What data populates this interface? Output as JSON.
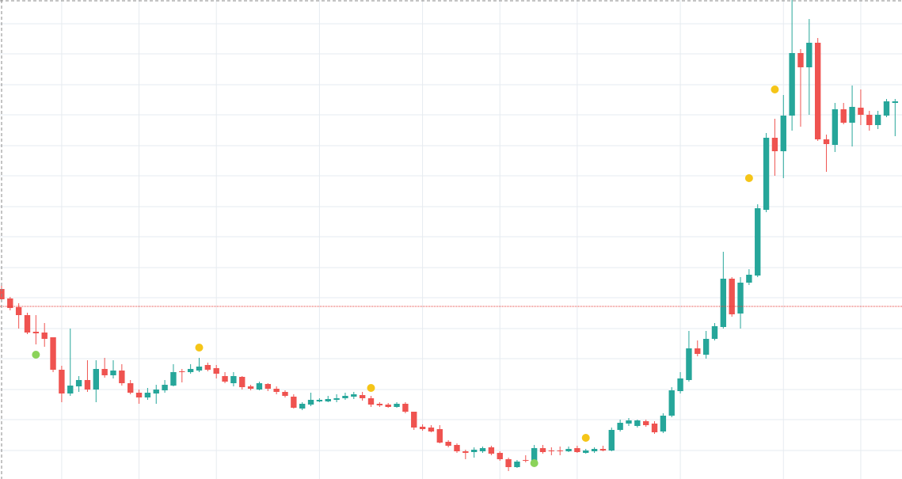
{
  "chart_data": {
    "type": "candlestick",
    "x": [
      0,
      1,
      2,
      3,
      4,
      5,
      6,
      7,
      8,
      9,
      10,
      11,
      12,
      13,
      14,
      15,
      16,
      17,
      18,
      19,
      20,
      21,
      22,
      23,
      24,
      25,
      26,
      27,
      28,
      29,
      30,
      31,
      32,
      33,
      34,
      35,
      36,
      37,
      38,
      39,
      40,
      41,
      42,
      43,
      44,
      45,
      46,
      47,
      48,
      49,
      50,
      51,
      52,
      53,
      54,
      55,
      56,
      57,
      58,
      59,
      60,
      61,
      62,
      63,
      64,
      65,
      66,
      67,
      68,
      69,
      70,
      71,
      72,
      73,
      74,
      75,
      76,
      77,
      78,
      79,
      80,
      81,
      82,
      83,
      84,
      85,
      86,
      87,
      88,
      89,
      90,
      91,
      92,
      93,
      94,
      95,
      96,
      97,
      98,
      99,
      100,
      101,
      102,
      103,
      104
    ],
    "open": [
      240,
      228,
      217,
      207,
      186,
      185,
      179,
      138,
      108,
      117,
      125,
      113,
      139,
      131,
      137,
      121,
      109,
      103,
      108,
      112,
      118,
      136,
      135,
      137,
      144,
      140,
      130,
      121,
      129,
      117,
      113,
      120,
      114,
      110,
      104,
      89,
      94,
      98,
      98,
      100,
      102,
      104,
      106,
      102,
      95,
      94,
      91,
      95,
      85,
      66,
      65,
      63,
      47,
      43,
      35,
      34,
      35,
      40,
      33,
      25,
      15,
      24,
      23,
      39,
      36,
      36,
      35,
      39,
      33,
      35,
      38,
      36,
      62,
      70,
      67,
      73,
      70,
      60,
      80,
      111,
      125,
      165,
      157,
      177,
      192,
      253,
      209,
      248,
      257,
      340,
      431,
      414,
      459,
      538,
      520,
      551,
      429,
      422,
      467,
      450,
      469,
      460,
      447,
      459,
      475
    ],
    "high": [
      245,
      230,
      222,
      210,
      207,
      197,
      179,
      143,
      190,
      130,
      150,
      150,
      153,
      150,
      145,
      125,
      113,
      115,
      119,
      125,
      145,
      139,
      145,
      153,
      147,
      144,
      135,
      135,
      130,
      119,
      123,
      121,
      117,
      112,
      107,
      97,
      109,
      102,
      105,
      107,
      109,
      110,
      110,
      105,
      97,
      96,
      97,
      97,
      85,
      69,
      68,
      68,
      49,
      45,
      37,
      40,
      41,
      42,
      35,
      27,
      24,
      30,
      43,
      43,
      40,
      41,
      41,
      42,
      38,
      40,
      42,
      65,
      75,
      77,
      75,
      75,
      73,
      83,
      116,
      135,
      187,
      175,
      187,
      197,
      287,
      255,
      255,
      265,
      347,
      437,
      455,
      485,
      605,
      543,
      581,
      557,
      435,
      475,
      475,
      497,
      492,
      465,
      465,
      480,
      480
    ],
    "low": [
      225,
      213,
      190,
      183,
      170,
      167,
      135,
      97,
      105,
      110,
      110,
      97,
      128,
      127,
      118,
      107,
      95,
      100,
      95,
      109,
      117,
      122,
      133,
      135,
      136,
      127,
      121,
      117,
      113,
      112,
      112,
      111,
      107,
      103,
      89,
      87,
      92,
      97,
      97,
      97,
      100,
      101,
      99,
      91,
      91,
      90,
      90,
      83,
      62,
      61,
      59,
      45,
      40,
      33,
      25,
      27,
      33,
      30,
      23,
      10,
      14,
      21,
      21,
      32,
      30,
      30,
      34,
      33,
      32,
      33,
      35,
      35,
      60,
      67,
      65,
      66,
      57,
      58,
      78,
      108,
      123,
      155,
      152,
      175,
      190,
      205,
      190,
      245,
      255,
      337,
      383,
      380,
      440,
      445,
      460,
      427,
      388,
      413,
      448,
      420,
      447,
      440,
      442,
      457,
      433
    ],
    "close": [
      227,
      216,
      207,
      185,
      184,
      177,
      138,
      108,
      118,
      125,
      113,
      139,
      131,
      137,
      121,
      109,
      103,
      109,
      113,
      119,
      135,
      135,
      139,
      142,
      138,
      133,
      123,
      130,
      116,
      114,
      121,
      114,
      110,
      105,
      90,
      95,
      100,
      100,
      101,
      102,
      105,
      107,
      102,
      94,
      93,
      91,
      95,
      85,
      65,
      63,
      60,
      46,
      42,
      35,
      33,
      37,
      39,
      32,
      25,
      15,
      22,
      23,
      39,
      34,
      35,
      35,
      38,
      34,
      36,
      38,
      36,
      62,
      71,
      74,
      74,
      68,
      59,
      80,
      112,
      127,
      165,
      158,
      177,
      193,
      253,
      208,
      248,
      258,
      342,
      431,
      414,
      459,
      538,
      520,
      551,
      429,
      423,
      467,
      450,
      470,
      460,
      447,
      460,
      477,
      477
    ],
    "up_color": "#26a69a",
    "down_color": "#ef5350",
    "markers": {
      "x": [
        23,
        43,
        68,
        87,
        90,
        4,
        62
      ],
      "values": [
        166,
        115,
        52,
        380,
        492,
        157,
        20
      ],
      "colors": [
        "#f5c518",
        "#f5c518",
        "#f5c518",
        "#f5c518",
        "#f5c518",
        "#8bd35a",
        "#8bd35a"
      ]
    },
    "price_line": {
      "value": 218,
      "color": "#e53935"
    },
    "xlim": [
      -0.18,
      104.8
    ],
    "ylim": [
      0,
      605
    ],
    "xticks": [
      7,
      16,
      25,
      37,
      49,
      58,
      67,
      79,
      91,
      100
    ],
    "yticks": [
      36,
      75,
      113,
      152,
      190,
      229,
      267,
      306,
      344,
      383,
      421,
      460,
      498,
      537,
      575
    ],
    "grid": true
  }
}
